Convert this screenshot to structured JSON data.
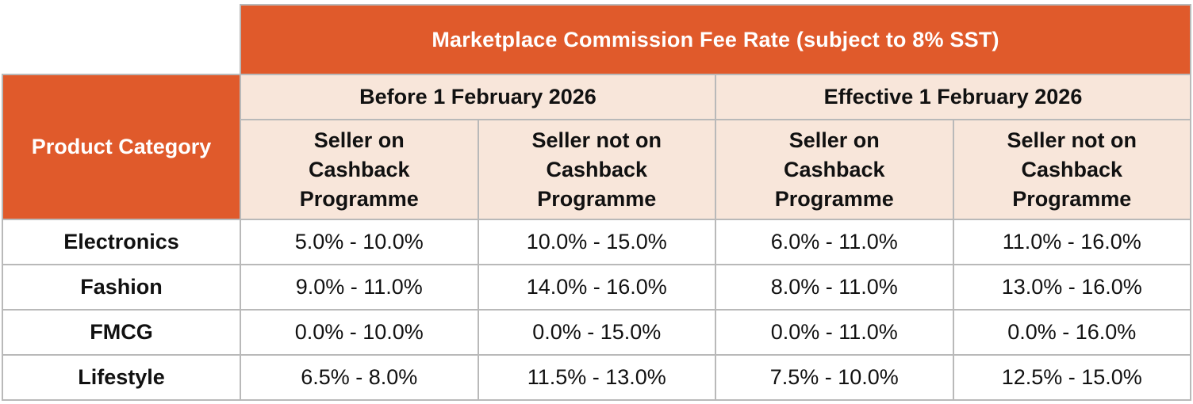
{
  "table": {
    "title": "Marketplace Commission Fee Rate (subject to 8% SST)",
    "category_header": "Product Category",
    "periods": [
      {
        "label": "Before 1 February 2026"
      },
      {
        "label": "Effective 1 February 2026"
      }
    ],
    "subheaders": [
      {
        "line1": "Seller on",
        "line2": "Cashback",
        "line3": "Programme"
      },
      {
        "line1": "Seller not on",
        "line2": "Cashback",
        "line3": "Programme"
      },
      {
        "line1": "Seller on",
        "line2": "Cashback",
        "line3": "Programme"
      },
      {
        "line1": "Seller not on",
        "line2": "Cashback",
        "line3": "Programme"
      }
    ],
    "rows": [
      {
        "category": "Electronics",
        "values": [
          "5.0% - 10.0%",
          "10.0% - 15.0%",
          "6.0% - 11.0%",
          "11.0% - 16.0%"
        ]
      },
      {
        "category": "Fashion",
        "values": [
          "9.0% - 11.0%",
          "14.0% - 16.0%",
          "8.0% - 11.0%",
          "13.0% - 16.0%"
        ]
      },
      {
        "category": "FMCG",
        "values": [
          "0.0% - 10.0%",
          "0.0% - 15.0%",
          "0.0% - 11.0%",
          "0.0% - 16.0%"
        ]
      },
      {
        "category": "Lifestyle",
        "values": [
          "6.5% - 8.0%",
          "11.5% - 13.0%",
          "7.5% - 10.0%",
          "12.5% - 15.0%"
        ]
      }
    ]
  },
  "colors": {
    "header_orange": "#e05a2b",
    "subheader_peach": "#f8e6da",
    "border_gray": "#b9b9b9",
    "text_dark": "#111111",
    "text_light": "#ffffff"
  }
}
